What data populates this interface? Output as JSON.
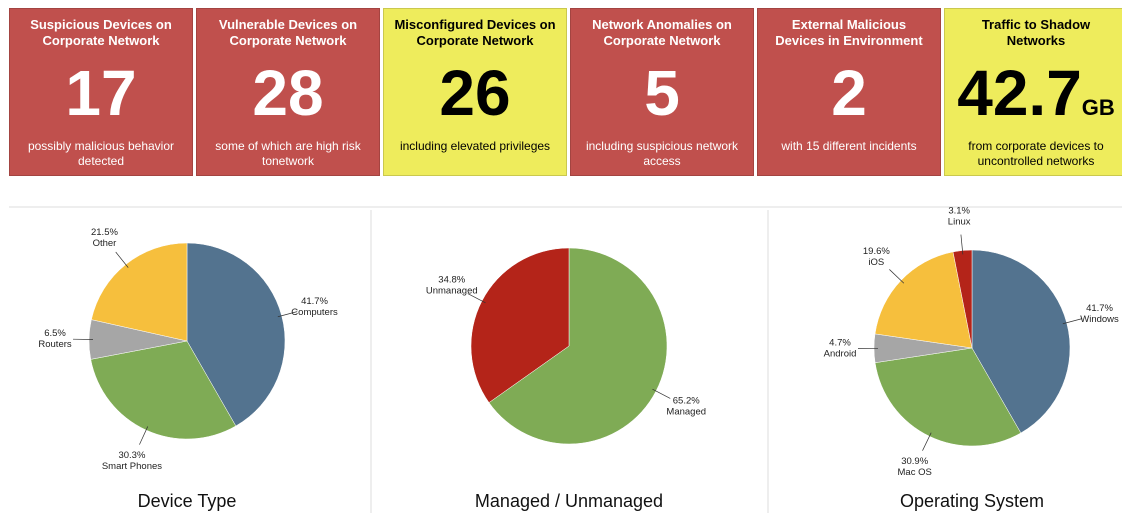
{
  "tiles": [
    {
      "title": "Suspicious Devices on Corporate Network",
      "value": 17,
      "description": "possibly malicious behavior detected",
      "color": "#c0504d"
    },
    {
      "title": "Vulnerable Devices on Corporate Network",
      "value": 28,
      "description": "some of which are high risk tonetwork",
      "color": "#c0504d"
    },
    {
      "title": "Misconfigured Devices on Corporate Network",
      "value": 26,
      "description": "including elevated privileges",
      "color": "#eeec5c"
    },
    {
      "title": "Network Anomalies on Corporate Network",
      "value": 5,
      "description": "including suspicious network access",
      "color": "#c0504d"
    },
    {
      "title": "External Malicious Devices in Environment",
      "value": 2,
      "description": "with 15 different incidents",
      "color": "#c0504d"
    },
    {
      "title": "Traffic to Shadow Networks",
      "value": 42.7,
      "unit": "GB",
      "description": "from corporate devices to uncontrolled networks",
      "color": "#eeec5c"
    }
  ],
  "chart_data": [
    {
      "type": "pie",
      "title": "Device Type",
      "categories": [
        "Computers",
        "Smart Phones",
        "Routers",
        "Other"
      ],
      "values": [
        41.7,
        30.3,
        6.5,
        21.5
      ],
      "value_labels": [
        "41.7%",
        "30.3%",
        "6.5%",
        "21.5%"
      ],
      "colors": [
        "#53738f",
        "#7fab55",
        "#a6a6a6",
        "#f6bf3d"
      ]
    },
    {
      "type": "pie",
      "title": "Managed / Unmanaged",
      "categories": [
        "Managed",
        "Unmanaged"
      ],
      "values": [
        65.2,
        34.8
      ],
      "value_labels": [
        "65.2%",
        "34.8%"
      ],
      "colors": [
        "#7fab55",
        "#b42419"
      ]
    },
    {
      "type": "pie",
      "title": "Operating System",
      "categories": [
        "Windows",
        "Mac OS",
        "Android",
        "iOS",
        "Linux"
      ],
      "values": [
        41.7,
        30.9,
        4.7,
        19.6,
        3.1
      ],
      "value_labels": [
        "41.7%",
        "30.9%",
        "4.7%",
        "19.6%",
        "3.1%"
      ],
      "colors": [
        "#53738f",
        "#7fab55",
        "#a6a6a6",
        "#f6bf3d",
        "#b42419"
      ]
    }
  ]
}
